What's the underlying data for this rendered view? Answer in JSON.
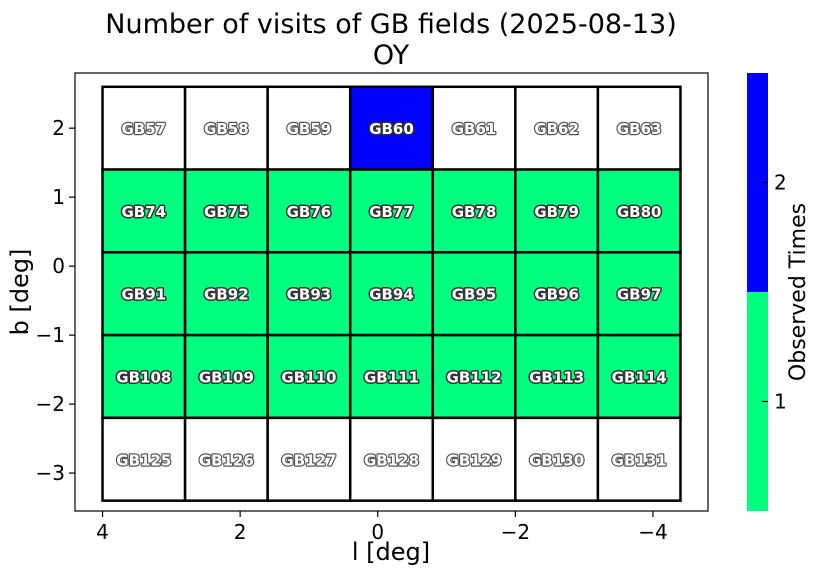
{
  "chart_data": {
    "type": "heatmap",
    "title": "Number of visits of GB fields (2025-08-13)",
    "subtitle": "OY",
    "xlabel": "l [deg]",
    "ylabel": "b [deg]",
    "xlim": [
      4.4,
      -4.8
    ],
    "ylim": [
      -3.55,
      2.8
    ],
    "xticks": [
      4,
      2,
      0,
      -2,
      -4
    ],
    "xtick_labels": [
      "4",
      "2",
      "0",
      "−2",
      "−4"
    ],
    "yticks": [
      2,
      1,
      0,
      -1,
      -2,
      -3
    ],
    "ytick_labels": [
      "2",
      "1",
      "0",
      "−1",
      "−2",
      "−3"
    ],
    "columns_l": [
      3.4,
      2.2,
      1.0,
      -0.2,
      -1.4,
      -2.6,
      -3.8
    ],
    "rows_b": [
      2.0,
      0.8,
      -0.4,
      -1.6,
      -2.8
    ],
    "cell_width_deg": 1.2,
    "cell_height_deg": 1.2,
    "fields": [
      [
        "GB57",
        "GB58",
        "GB59",
        "GB60",
        "GB61",
        "GB62",
        "GB63"
      ],
      [
        "GB74",
        "GB75",
        "GB76",
        "GB77",
        "GB78",
        "GB79",
        "GB80"
      ],
      [
        "GB91",
        "GB92",
        "GB93",
        "GB94",
        "GB95",
        "GB96",
        "GB97"
      ],
      [
        "GB108",
        "GB109",
        "GB110",
        "GB111",
        "GB112",
        "GB113",
        "GB114"
      ],
      [
        "GB125",
        "GB126",
        "GB127",
        "GB128",
        "GB129",
        "GB130",
        "GB131"
      ]
    ],
    "visits": [
      [
        0,
        0,
        0,
        2,
        0,
        0,
        0
      ],
      [
        1,
        1,
        1,
        1,
        1,
        1,
        1
      ],
      [
        1,
        1,
        1,
        1,
        1,
        1,
        1
      ],
      [
        1,
        1,
        1,
        1,
        1,
        1,
        1
      ],
      [
        0,
        0,
        0,
        0,
        0,
        0,
        0
      ]
    ],
    "colorbar": {
      "label": "Observed Times",
      "ticks": [
        1,
        2
      ],
      "range": [
        0.5,
        2.5
      ],
      "colors": {
        "1": "#00ff7f",
        "2": "#0000ff"
      }
    },
    "unobserved_color": "#ffffff",
    "grid": false
  }
}
